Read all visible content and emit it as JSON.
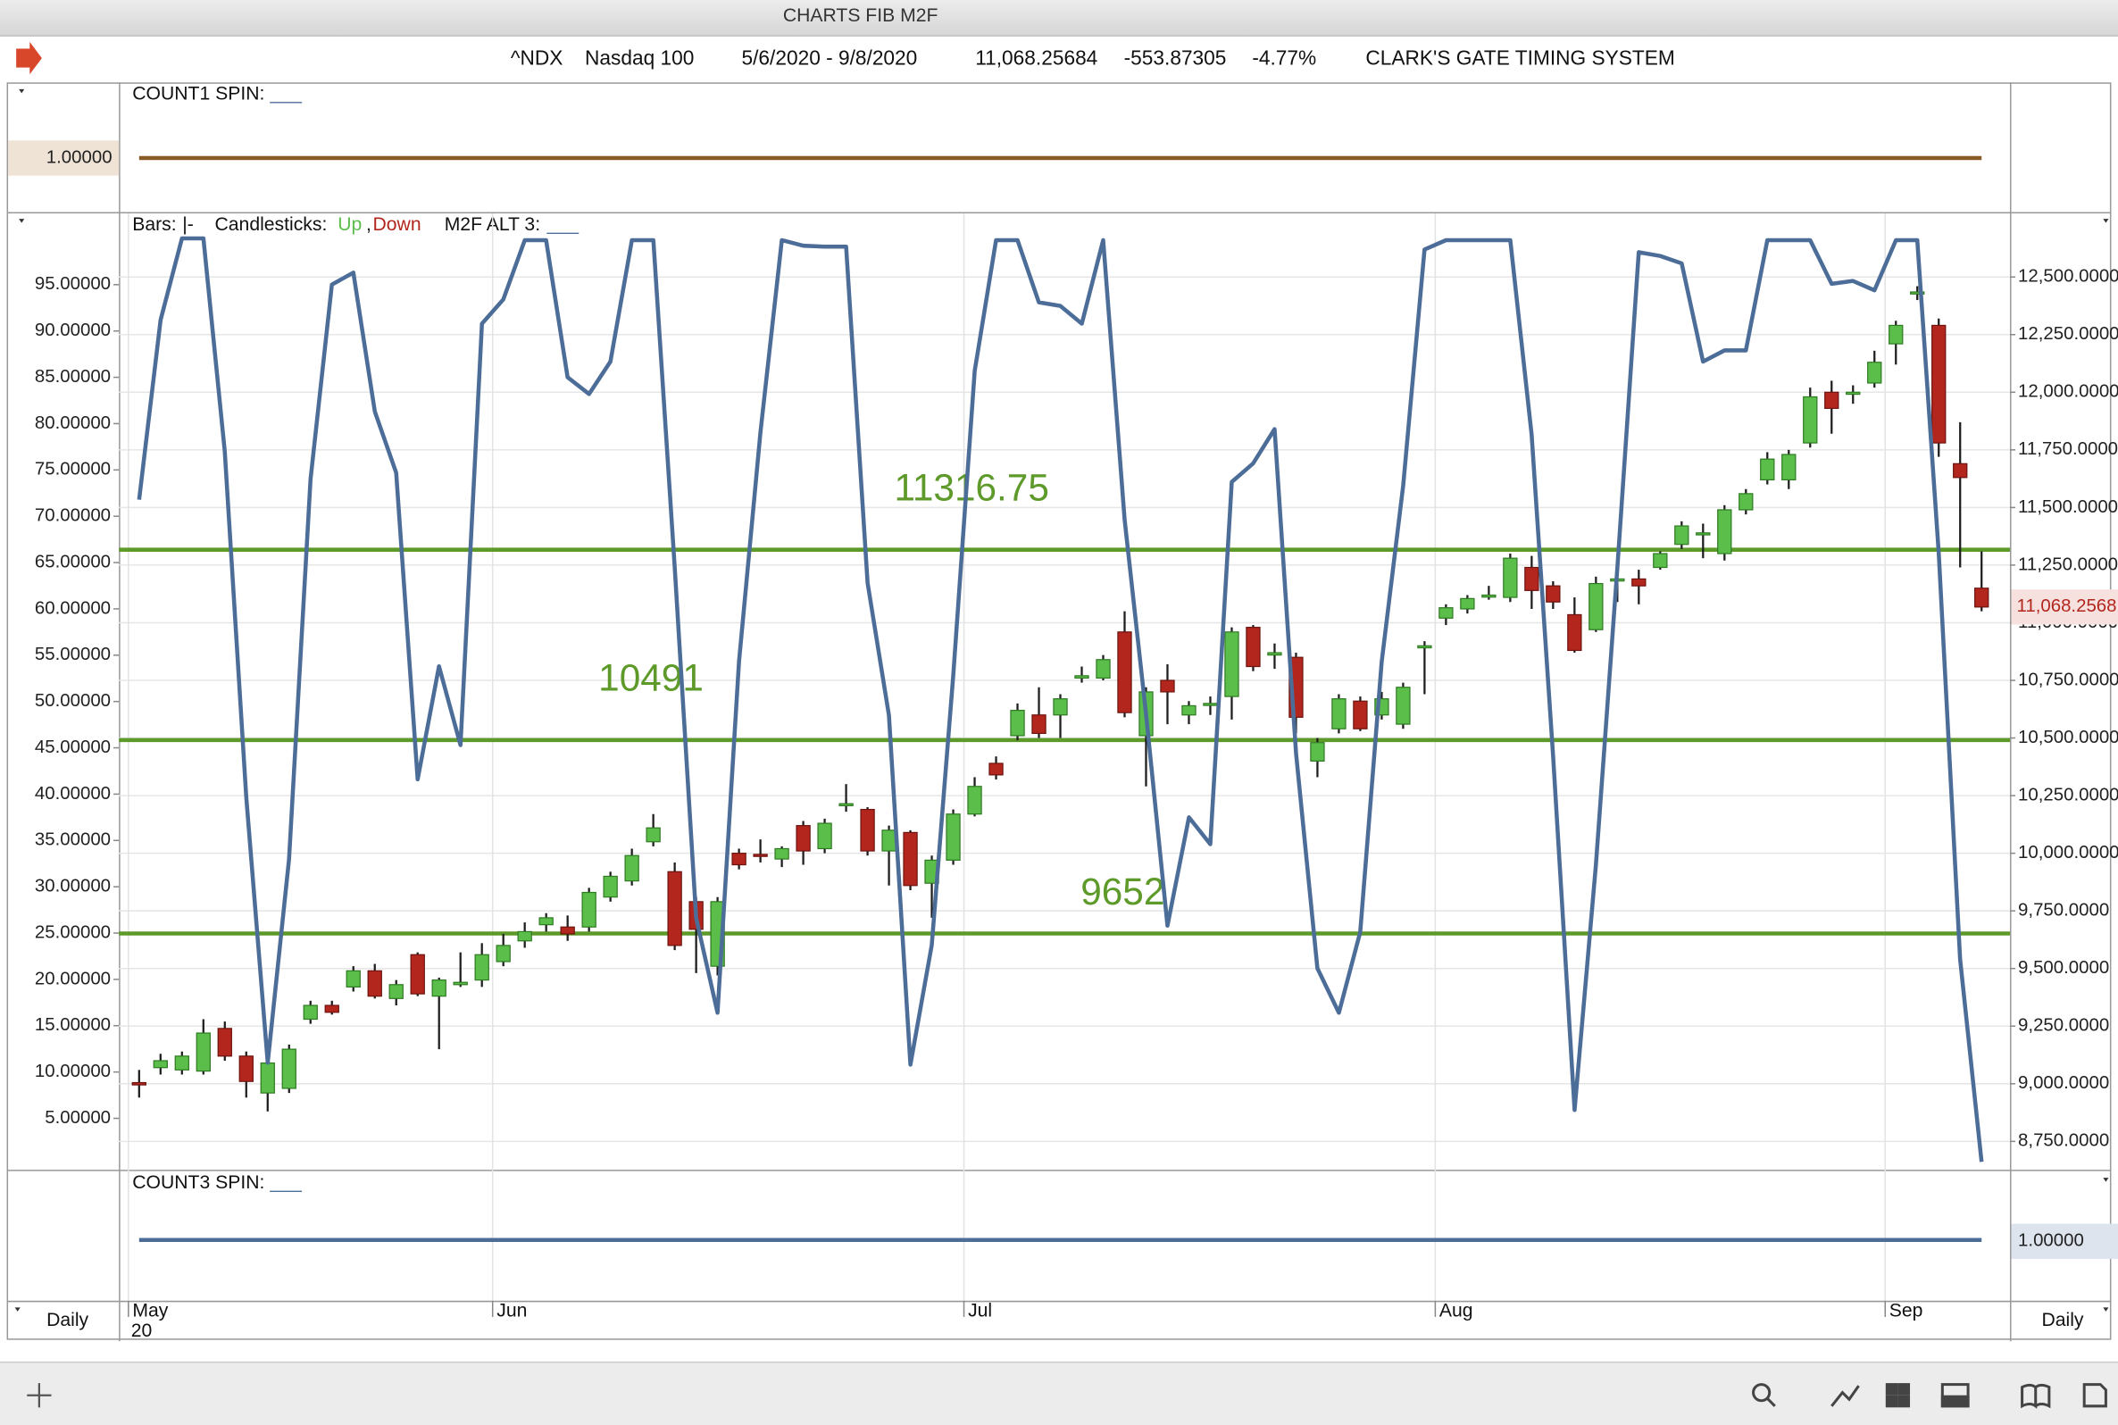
{
  "window_title": "CHARTS FIB M2F",
  "header": {
    "symbol": "^NDX",
    "name": "Nasdaq 100",
    "range": "5/6/2020 - 9/8/2020",
    "last": "11,068.25684",
    "change": "-553.87305",
    "change_pct": "-4.77%",
    "system": "CLARK'S GATE TIMING SYSTEM"
  },
  "top_panel": {
    "title": "COUNT1 SPIN:",
    "blank": "___",
    "value": {
      "value": 1,
      "label": "1.00000"
    },
    "color": "#8a5a24"
  },
  "bottom_panel": {
    "title": "COUNT3 SPIN:",
    "blank": "___",
    "value": {
      "value": 1,
      "label": "1.00000"
    },
    "color": "#4d6d99"
  },
  "periodicity": "Daily",
  "chart_data": {
    "type": "candlestick",
    "legend": {
      "bars_label": "Bars:",
      "bars_value": "|-",
      "candles_label": "Candlesticks:",
      "up": "Up",
      "sep": ",",
      "down": "Down"
    },
    "up_color": "#5bbd4a",
    "down_color": "#b3261e",
    "categories": [
      "May",
      null,
      null,
      null,
      null,
      null,
      null,
      null,
      null,
      null,
      null,
      null,
      null,
      null,
      null,
      null,
      null,
      "Jun",
      null,
      null,
      null,
      null,
      null,
      null,
      null,
      null,
      null,
      null,
      null,
      null,
      null,
      null,
      null,
      null,
      null,
      null,
      null,
      null,
      null,
      "Jul",
      null,
      null,
      null,
      null,
      null,
      null,
      null,
      null,
      null,
      null,
      null,
      null,
      null,
      null,
      null,
      null,
      null,
      null,
      null,
      null,
      null,
      "Aug",
      null,
      null,
      null,
      null,
      null,
      null,
      null,
      null,
      null,
      null,
      null,
      null,
      null,
      null,
      null,
      null,
      null,
      null,
      null,
      null,
      "Sep",
      null,
      null,
      null,
      null
    ],
    "year_label": "20",
    "open": [
      9005,
      9070,
      9060,
      9055,
      9240,
      9120,
      8960,
      8980,
      9280,
      9340,
      9420,
      9490,
      9370,
      9560,
      9380,
      9430,
      9450,
      9530,
      9620,
      9690,
      9680,
      9680,
      9810,
      9880,
      10050,
      9920,
      9790,
      9510,
      10000,
      9995,
      9975,
      10120,
      10020,
      10210,
      10190,
      10010,
      10090,
      9870,
      9970,
      10170,
      10390,
      10510,
      10600,
      10600,
      10760,
      10760,
      10960,
      10510,
      10750,
      10600,
      10645,
      10680,
      10980,
      10860,
      10850,
      10400,
      10540,
      10660,
      10600,
      10560,
      10895,
      11020,
      11060,
      11115,
      11110,
      11240,
      11160,
      11035,
      10970,
      11185,
      11190,
      11240,
      11340,
      11385,
      11300,
      11490,
      11620,
      11620,
      11780,
      12000,
      11995,
      12040,
      12210,
      12430,
      12290,
      11690,
      11150
    ],
    "high": [
      9060,
      9130,
      9140,
      9280,
      9270,
      9140,
      9120,
      9170,
      9360,
      9360,
      9510,
      9520,
      9450,
      9570,
      9460,
      9570,
      9610,
      9650,
      9700,
      9740,
      9730,
      9850,
      9920,
      10020,
      10170,
      9960,
      9810,
      9810,
      10020,
      10060,
      10030,
      10140,
      10150,
      10300,
      10200,
      10120,
      10100,
      9990,
      10190,
      10330,
      10420,
      10650,
      10720,
      10690,
      10810,
      10860,
      11050,
      10720,
      10820,
      10660,
      10680,
      10980,
      10990,
      10910,
      10870,
      10500,
      10690,
      10680,
      10700,
      10740,
      10920,
      11080,
      11120,
      11160,
      11300,
      11290,
      11180,
      11110,
      11200,
      11290,
      11230,
      11310,
      11440,
      11430,
      11510,
      11580,
      11740,
      11750,
      12020,
      12050,
      12030,
      12180,
      12310,
      12460,
      12320,
      11870,
      11310
    ],
    "low": [
      8940,
      9040,
      9040,
      9040,
      9100,
      8940,
      8880,
      8960,
      9260,
      9300,
      9400,
      9370,
      9340,
      9380,
      9150,
      9420,
      9420,
      9510,
      9590,
      9660,
      9620,
      9660,
      9790,
      9860,
      10030,
      9580,
      9480,
      9470,
      9930,
      9960,
      9940,
      9950,
      10000,
      10180,
      9990,
      9860,
      9840,
      9720,
      9950,
      10160,
      10320,
      10490,
      10500,
      10500,
      10740,
      10750,
      10590,
      10290,
      10560,
      10560,
      10600,
      10580,
      10790,
      10800,
      10520,
      10330,
      10520,
      10530,
      10580,
      10540,
      10690,
      10990,
      11040,
      11100,
      11090,
      11060,
      11060,
      10870,
      10960,
      11090,
      11080,
      11230,
      11320,
      11280,
      11270,
      11470,
      11600,
      11580,
      11760,
      11820,
      11950,
      12020,
      12120,
      12400,
      11720,
      11240,
      11050
    ],
    "close": [
      8995,
      9100,
      9120,
      9220,
      9120,
      9010,
      9090,
      9150,
      9340,
      9310,
      9490,
      9380,
      9430,
      9390,
      9450,
      9440,
      9560,
      9600,
      9660,
      9720,
      9650,
      9830,
      9900,
      9990,
      10110,
      9600,
      9670,
      9790,
      9950,
      9990,
      10020,
      10010,
      10130,
      10215,
      10010,
      10100,
      9860,
      9970,
      10170,
      10290,
      10340,
      10620,
      10520,
      10670,
      10770,
      10840,
      10610,
      10700,
      10700,
      10640,
      10650,
      10960,
      10810,
      10870,
      10590,
      10480,
      10670,
      10540,
      10670,
      10720,
      10900,
      11065,
      11105,
      11120,
      11280,
      11140,
      11090,
      10880,
      11170,
      11190,
      11160,
      11300,
      11420,
      11390,
      11490,
      11560,
      11710,
      11730,
      11980,
      11930,
      12000,
      12130,
      12290,
      12435,
      11780,
      11630,
      11068.26
    ],
    "series": [
      {
        "name": "M2F ALT 3:",
        "color": "#4d6d99",
        "axis": "y",
        "values": [
          71.8,
          91.2,
          100,
          100,
          77,
          39.7,
          11,
          33,
          74,
          95,
          96.3,
          81.3,
          74.7,
          41.6,
          53.8,
          45.3,
          90.8,
          93.4,
          99.8,
          99.8,
          85,
          83.2,
          86.7,
          99.8,
          99.8,
          64.5,
          26.6,
          16.4,
          54.3,
          79.1,
          99.8,
          99.2,
          99.1,
          99.1,
          62.8,
          48.5,
          10.8,
          23.7,
          52.8,
          85.7,
          99.8,
          99.8,
          93.1,
          92.7,
          90.8,
          99.8,
          69.6,
          48.7,
          25.8,
          37.5,
          34.6,
          73.7,
          75.7,
          79.4,
          44.4,
          21.2,
          16.4,
          25.1,
          54.3,
          73.3,
          98.8,
          99.8,
          99.8,
          99.8,
          99.8,
          78.8,
          44.1,
          5.9,
          32.4,
          64.5,
          98.5,
          98.1,
          97.3,
          86.7,
          87.9,
          87.9,
          99.8,
          99.8,
          99.8,
          95.1,
          95.4,
          94.4,
          99.8,
          99.8,
          66,
          22.2,
          0.3
        ]
      }
    ],
    "series_blank": "___",
    "ylim": [
      -0.4,
      102.4
    ],
    "yticks": [
      {
        "value": 5,
        "label": "5.00000"
      },
      {
        "value": 10,
        "label": "10.00000"
      },
      {
        "value": 15,
        "label": "15.00000"
      },
      {
        "value": 20,
        "label": "20.00000"
      },
      {
        "value": 25,
        "label": "25.00000"
      },
      {
        "value": 30,
        "label": "30.00000"
      },
      {
        "value": 35,
        "label": "35.00000"
      },
      {
        "value": 40,
        "label": "40.00000"
      },
      {
        "value": 45,
        "label": "45.00000"
      },
      {
        "value": 50,
        "label": "50.00000"
      },
      {
        "value": 55,
        "label": "55.00000"
      },
      {
        "value": 60,
        "label": "60.00000"
      },
      {
        "value": 65,
        "label": "65.00000"
      },
      {
        "value": 70,
        "label": "70.00000"
      },
      {
        "value": 75,
        "label": "75.00000"
      },
      {
        "value": 80,
        "label": "80.00000"
      },
      {
        "value": 85,
        "label": "85.00000"
      },
      {
        "value": 90,
        "label": "90.00000"
      },
      {
        "value": 95,
        "label": "95.00000"
      }
    ],
    "y2lim": [
      8633,
      12764
    ],
    "y2ticks": [
      {
        "value": 8750,
        "label": "8,750.0000"
      },
      {
        "value": 9000,
        "label": "9,000.0000"
      },
      {
        "value": 9250,
        "label": "9,250.0000"
      },
      {
        "value": 9500,
        "label": "9,500.0000"
      },
      {
        "value": 9750,
        "label": "9,750.0000"
      },
      {
        "value": 10000,
        "label": "10,000.0000"
      },
      {
        "value": 10250,
        "label": "10,250.0000"
      },
      {
        "value": 10500,
        "label": "10,500.0000"
      },
      {
        "value": 10750,
        "label": "10,750.0000"
      },
      {
        "value": 11000,
        "label": "11,000.0000"
      },
      {
        "value": 11250,
        "label": "11,250.0000"
      },
      {
        "value": 11500,
        "label": "11,500.0000"
      },
      {
        "value": 11750,
        "label": "11,750.0000"
      },
      {
        "value": 12000,
        "label": "12,000.0000"
      },
      {
        "value": 12250,
        "label": "12,250.0000"
      },
      {
        "value": 12500,
        "label": "12,500.0000"
      }
    ],
    "grid": true,
    "levels": [
      11316.75,
      10491,
      9652
    ],
    "level_color": "#5e9a2a",
    "last_price": {
      "value": 11068.25684,
      "label": "11,068.2568"
    }
  }
}
